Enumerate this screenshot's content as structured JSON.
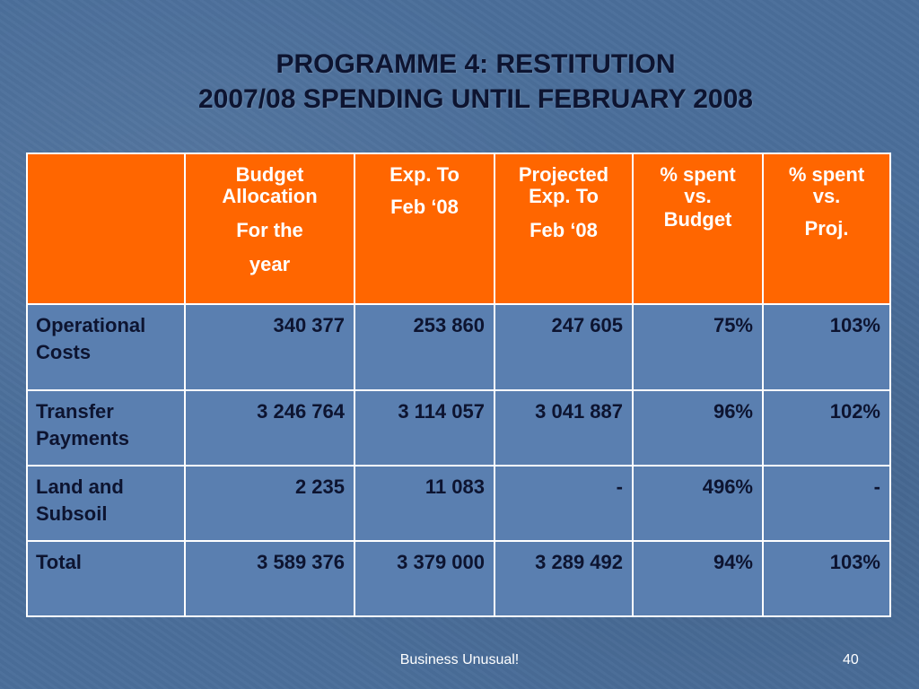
{
  "title": {
    "line1": "PROGRAMME 4: RESTITUTION",
    "line2": "2007/08 SPENDING UNTIL FEBRUARY 2008"
  },
  "table": {
    "headers": [
      {
        "lines": [
          ""
        ]
      },
      {
        "lines": [
          "Budget",
          "Allocation",
          "For the",
          "year"
        ]
      },
      {
        "lines": [
          "Exp. To",
          "Feb ‘08"
        ]
      },
      {
        "lines": [
          "Projected",
          "Exp. To",
          "Feb ‘08"
        ]
      },
      {
        "lines": [
          "% spent",
          "vs.",
          "Budget"
        ]
      },
      {
        "lines": [
          "% spent",
          "vs.",
          "Proj."
        ]
      }
    ],
    "rows": [
      {
        "label_lines": [
          "Operational",
          "Costs"
        ],
        "cells": [
          "340 377",
          "253 860",
          "247 605",
          "75%",
          "103%"
        ]
      },
      {
        "label_lines": [
          "Transfer",
          "Payments"
        ],
        "cells": [
          "3 246 764",
          "3 114 057",
          "3 041 887",
          "96%",
          "102%"
        ]
      },
      {
        "label_lines": [
          "Land and",
          "Subsoil"
        ],
        "cells": [
          "2 235",
          "11 083",
          "-",
          "496%",
          "-"
        ]
      },
      {
        "label_lines": [
          "Total"
        ],
        "cells": [
          "3 589 376",
          "3 379 000",
          "3 289 492",
          "94%",
          "103%"
        ]
      }
    ]
  },
  "footer": {
    "center_text": "Business Unusual!",
    "page_number": "40"
  },
  "colors": {
    "background": "#4a6e9a",
    "header_fill": "#ff6600",
    "body_cell_fill": "#5a7fb0",
    "title_text": "#0d1430"
  }
}
